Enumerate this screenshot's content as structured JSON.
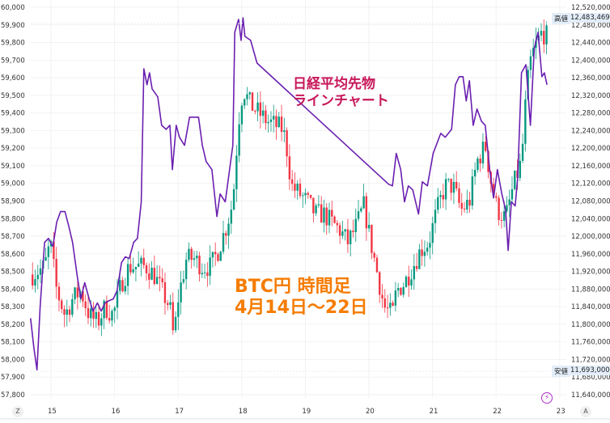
{
  "chart_data": {
    "type": "line",
    "title": "",
    "annotations": {
      "nikkei_label_line1": "日経平均先物",
      "nikkei_label_line2": "ラインチャート",
      "btc_label_line1": "BTC円 時間足",
      "btc_label_line2": "4月14日～22日"
    },
    "x_ticks": [
      "15",
      "16",
      "17",
      "18",
      "19",
      "20",
      "21",
      "22",
      "23"
    ],
    "x_tick_days": [
      15,
      16,
      17,
      18,
      19,
      20,
      21,
      22,
      23
    ],
    "left_axis": {
      "min": 57800,
      "max": 60000,
      "step": 100,
      "labels": [
        "60,000",
        "59,900",
        "59,800",
        "59,700",
        "59,600",
        "59,500",
        "59,400",
        "59,300",
        "59,200",
        "59,100",
        "59,000",
        "58,900",
        "58,800",
        "58,700",
        "58,600",
        "58,500",
        "58,400",
        "58,300",
        "58,200",
        "58,100",
        "58,000",
        "57,900",
        "57,800"
      ]
    },
    "right_axis": {
      "min": 11640000,
      "max": 12520000,
      "step": 40000,
      "labels": [
        "12,520,000",
        "12,480,000",
        "12,440,000",
        "12,400,000",
        "12,360,000",
        "12,320,000",
        "12,280,000",
        "12,240,000",
        "12,200,000",
        "12,160,000",
        "12,120,000",
        "12,080,000",
        "12,040,000",
        "12,000,000",
        "11,960,000",
        "11,920,000",
        "11,880,000",
        "11,840,000",
        "11,800,000",
        "11,760,000",
        "11,720,000",
        "11,680,000",
        "11,640,000"
      ]
    },
    "high": {
      "label": "高値",
      "value": "12,483,469",
      "num": 12483469
    },
    "low": {
      "label": "安値",
      "value": "11,693,000",
      "num": 11693000
    },
    "series": [
      {
        "name": "日経平均先物",
        "type": "line",
        "axis": "left",
        "color": "#6a1fb0",
        "points": [
          [
            14.68,
            58234
          ],
          [
            14.73,
            58069
          ],
          [
            14.78,
            57941
          ],
          [
            14.83,
            58298
          ],
          [
            14.9,
            58665
          ],
          [
            14.96,
            58688
          ],
          [
            15.03,
            58642
          ],
          [
            15.09,
            58780
          ],
          [
            15.15,
            58840
          ],
          [
            15.22,
            58840
          ],
          [
            15.28,
            58757
          ],
          [
            15.34,
            58665
          ],
          [
            15.41,
            58482
          ],
          [
            15.47,
            58344
          ],
          [
            15.53,
            58436
          ],
          [
            15.6,
            58344
          ],
          [
            15.66,
            58275
          ],
          [
            15.73,
            58321
          ],
          [
            15.79,
            58275
          ],
          [
            15.85,
            58321
          ],
          [
            15.92,
            58335
          ],
          [
            15.98,
            58344
          ],
          [
            16.04,
            58390
          ],
          [
            16.11,
            58550
          ],
          [
            16.17,
            58583
          ],
          [
            16.23,
            58573
          ],
          [
            16.3,
            58665
          ],
          [
            16.36,
            58688
          ],
          [
            16.42,
            58895
          ],
          [
            16.46,
            59651
          ],
          [
            16.51,
            59560
          ],
          [
            16.55,
            59628
          ],
          [
            16.59,
            59537
          ],
          [
            16.68,
            59491
          ],
          [
            16.74,
            59330
          ],
          [
            16.81,
            59307
          ],
          [
            16.87,
            59330
          ],
          [
            16.91,
            59078
          ],
          [
            16.97,
            59330
          ],
          [
            17.02,
            59262
          ],
          [
            17.1,
            59216
          ],
          [
            17.18,
            59376
          ],
          [
            17.32,
            59376
          ],
          [
            17.38,
            59216
          ],
          [
            17.44,
            59124
          ],
          [
            17.53,
            59078
          ],
          [
            17.61,
            58812
          ],
          [
            17.66,
            58940
          ],
          [
            17.74,
            58895
          ],
          [
            17.8,
            59055
          ],
          [
            17.86,
            59216
          ],
          [
            17.89,
            59858
          ],
          [
            17.95,
            59931
          ],
          [
            17.99,
            59812
          ],
          [
            18.02,
            59940
          ],
          [
            18.05,
            59835
          ],
          [
            18.14,
            59812
          ],
          [
            18.24,
            59683
          ],
          [
            20.31,
            58995
          ],
          [
            20.37,
            58986
          ],
          [
            20.43,
            59170
          ],
          [
            20.5,
            59078
          ],
          [
            20.56,
            58895
          ],
          [
            20.62,
            58986
          ],
          [
            20.69,
            58963
          ],
          [
            20.78,
            58826
          ],
          [
            20.84,
            59009
          ],
          [
            20.92,
            58986
          ],
          [
            21.01,
            59170
          ],
          [
            21.13,
            59284
          ],
          [
            21.2,
            59262
          ],
          [
            21.3,
            59307
          ],
          [
            21.36,
            59560
          ],
          [
            21.42,
            59606
          ],
          [
            21.48,
            59606
          ],
          [
            21.53,
            59468
          ],
          [
            21.58,
            59583
          ],
          [
            21.64,
            59330
          ],
          [
            21.7,
            59422
          ],
          [
            21.77,
            59353
          ],
          [
            21.83,
            59330
          ],
          [
            21.9,
            59078
          ],
          [
            21.96,
            58917
          ],
          [
            22.02,
            59078
          ],
          [
            22.09,
            58940
          ],
          [
            22.15,
            58849
          ],
          [
            22.19,
            58619
          ],
          [
            22.24,
            58895
          ],
          [
            22.3,
            58872
          ],
          [
            22.34,
            59032
          ],
          [
            22.4,
            59628
          ],
          [
            22.47,
            59674
          ],
          [
            22.54,
            59330
          ],
          [
            22.6,
            59766
          ],
          [
            22.66,
            59858
          ],
          [
            22.72,
            59606
          ],
          [
            22.76,
            59628
          ],
          [
            22.8,
            59560
          ]
        ]
      },
      {
        "name": "BTC円",
        "type": "candlestick",
        "axis": "right",
        "up_color": "#089981",
        "down_color": "#f23645",
        "close_path": [
          [
            14.71,
            11913000
          ],
          [
            14.9,
            11931000
          ],
          [
            14.99,
            11986000
          ],
          [
            15.09,
            11876000
          ],
          [
            15.22,
            11821000
          ],
          [
            15.34,
            11858000
          ],
          [
            15.47,
            11876000
          ],
          [
            15.6,
            11821000
          ],
          [
            15.73,
            11803000
          ],
          [
            15.85,
            11839000
          ],
          [
            15.98,
            11821000
          ],
          [
            16.11,
            11894000
          ],
          [
            16.23,
            11931000
          ],
          [
            16.36,
            11931000
          ],
          [
            16.49,
            11931000
          ],
          [
            16.62,
            11913000
          ],
          [
            16.74,
            11876000
          ],
          [
            16.87,
            11839000
          ],
          [
            16.93,
            11766000
          ],
          [
            17.0,
            11858000
          ],
          [
            17.13,
            11949000
          ],
          [
            17.25,
            11949000
          ],
          [
            17.38,
            11931000
          ],
          [
            17.51,
            11931000
          ],
          [
            17.63,
            11968000
          ],
          [
            17.76,
            12023000
          ],
          [
            17.86,
            12078000
          ],
          [
            17.95,
            12261000
          ],
          [
            18.02,
            12335000
          ],
          [
            18.14,
            12298000
          ],
          [
            18.27,
            12280000
          ],
          [
            18.4,
            12261000
          ],
          [
            18.53,
            12252000
          ],
          [
            18.65,
            12243000
          ],
          [
            18.72,
            12188000
          ],
          [
            18.78,
            12114000
          ],
          [
            18.91,
            12096000
          ],
          [
            19.03,
            12078000
          ],
          [
            19.16,
            12050000
          ],
          [
            19.29,
            12050000
          ],
          [
            19.41,
            12032000
          ],
          [
            19.54,
            12014000
          ],
          [
            19.67,
            11986000
          ],
          [
            19.8,
            12023000
          ],
          [
            19.92,
            12069000
          ],
          [
            20.03,
            11986000
          ],
          [
            20.11,
            11931000
          ],
          [
            20.24,
            11839000
          ],
          [
            20.37,
            11821000
          ],
          [
            20.43,
            11876000
          ],
          [
            20.56,
            11894000
          ],
          [
            20.69,
            11931000
          ],
          [
            20.81,
            11968000
          ],
          [
            20.94,
            11986000
          ],
          [
            21.07,
            12059000
          ],
          [
            21.2,
            12114000
          ],
          [
            21.32,
            12114000
          ],
          [
            21.45,
            12059000
          ],
          [
            21.58,
            12078000
          ],
          [
            21.7,
            12170000
          ],
          [
            21.83,
            12206000
          ],
          [
            21.93,
            12114000
          ],
          [
            22.02,
            12059000
          ],
          [
            22.15,
            12041000
          ],
          [
            22.27,
            12114000
          ],
          [
            22.4,
            12170000
          ],
          [
            22.47,
            12316000
          ],
          [
            22.53,
            12390000
          ],
          [
            22.6,
            12426000
          ],
          [
            22.72,
            12463000
          ],
          [
            22.8,
            12454000
          ]
        ]
      }
    ],
    "grid": true,
    "bottom_buttons": {
      "left": "Z",
      "right": "A"
    }
  }
}
